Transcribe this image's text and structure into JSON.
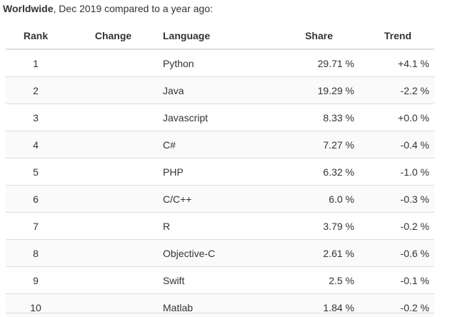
{
  "caption": {
    "bold": "Worldwide",
    "rest": ", Dec 2019 compared to a year ago:"
  },
  "table": {
    "headers": {
      "rank": "Rank",
      "change": "Change",
      "language": "Language",
      "share": "Share",
      "trend": "Trend"
    },
    "rows": [
      {
        "rank": "1",
        "change": "",
        "language": "Python",
        "share": "29.71 %",
        "trend": "+4.1 %"
      },
      {
        "rank": "2",
        "change": "",
        "language": "Java",
        "share": "19.29 %",
        "trend": "-2.2 %"
      },
      {
        "rank": "3",
        "change": "",
        "language": "Javascript",
        "share": "8.33 %",
        "trend": "+0.0 %"
      },
      {
        "rank": "4",
        "change": "",
        "language": "C#",
        "share": "7.27 %",
        "trend": "-0.4 %"
      },
      {
        "rank": "5",
        "change": "",
        "language": "PHP",
        "share": "6.32 %",
        "trend": "-1.0 %"
      },
      {
        "rank": "6",
        "change": "",
        "language": "C/C++",
        "share": "6.0 %",
        "trend": "-0.3 %"
      },
      {
        "rank": "7",
        "change": "",
        "language": "R",
        "share": "3.79 %",
        "trend": "-0.2 %"
      },
      {
        "rank": "8",
        "change": "",
        "language": "Objective-C",
        "share": "2.61 %",
        "trend": "-0.6 %"
      },
      {
        "rank": "9",
        "change": "",
        "language": "Swift",
        "share": "2.5 %",
        "trend": "-0.1 %"
      },
      {
        "rank": "10",
        "change": "",
        "language": "Matlab",
        "share": "1.84 %",
        "trend": "-0.2 %"
      }
    ]
  },
  "colors": {
    "text": "#333333",
    "rule": "#dddddd",
    "stripe": "#fafafa"
  }
}
